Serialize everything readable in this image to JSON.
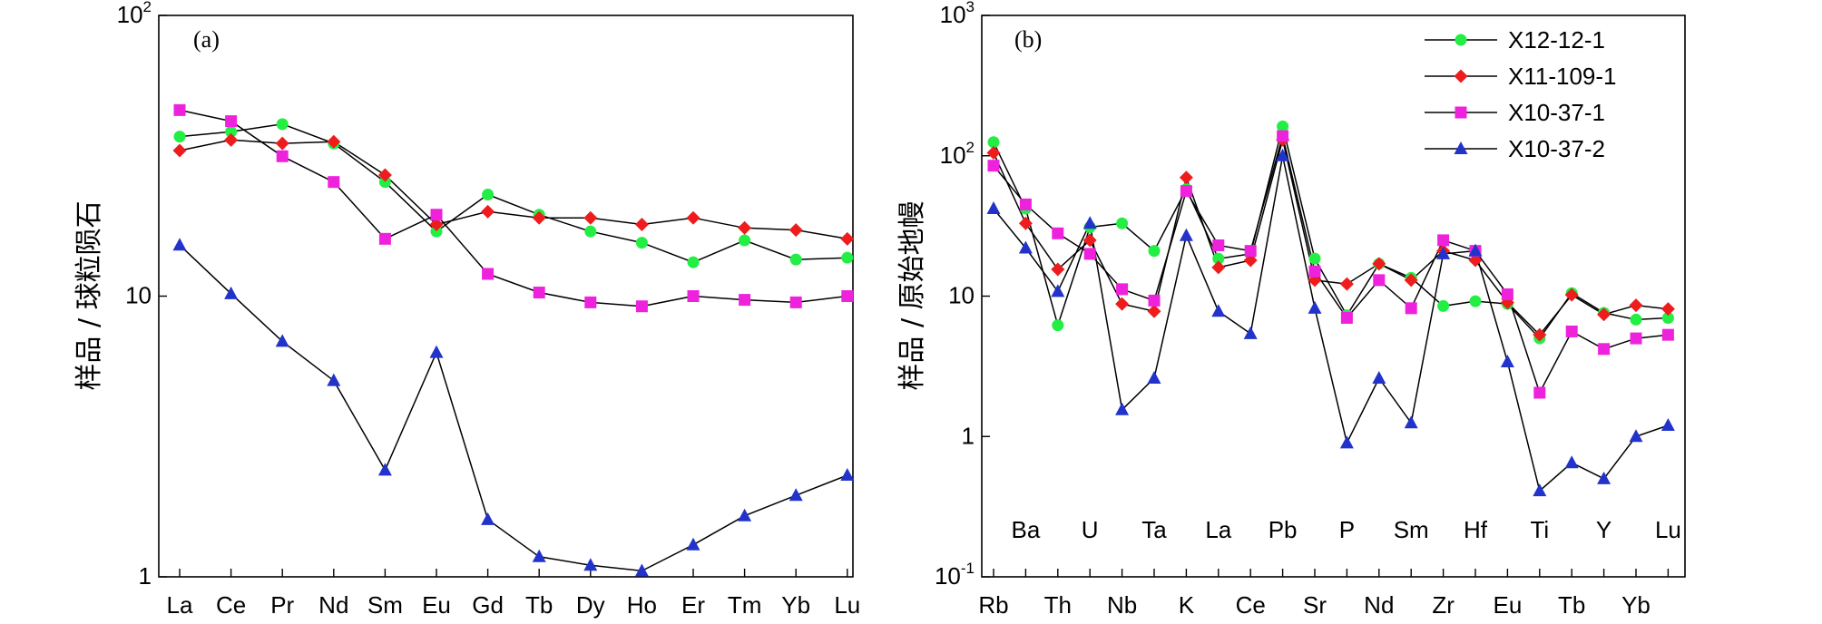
{
  "chart_data": [
    {
      "type": "line",
      "panel_label": "(a)",
      "ylabel": "样品 / 球粒陨石",
      "yscale": "log",
      "ylim": [
        1,
        100
      ],
      "y_ticks": [
        {
          "value": 1,
          "label": "1"
        },
        {
          "value": 10,
          "label": "10"
        },
        {
          "value": 100,
          "base": "10",
          "exp": "2"
        }
      ],
      "categories": [
        "La",
        "Ce",
        "Pr",
        "Nd",
        "Sm",
        "Eu",
        "Gd",
        "Tb",
        "Dy",
        "Ho",
        "Er",
        "Tm",
        "Yb",
        "Lu"
      ],
      "series": [
        {
          "name": "X12-12-1",
          "values": [
            37,
            38.5,
            41,
            35,
            25.5,
            17,
            23,
            19.5,
            17,
            15.5,
            13.2,
            15.8,
            13.5,
            13.7
          ]
        },
        {
          "name": "X11-109-1",
          "values": [
            33,
            36,
            35,
            35.5,
            27,
            18,
            20,
            19,
            19,
            18,
            19,
            17.5,
            17.2,
            16
          ]
        },
        {
          "name": "X10-37-1",
          "values": [
            46,
            42,
            31.5,
            25.5,
            16,
            19.5,
            12,
            10.3,
            9.5,
            9.2,
            10,
            9.7,
            9.5,
            10
          ]
        },
        {
          "name": "X10-37-2",
          "values": [
            15.2,
            10.2,
            6.9,
            5,
            2.4,
            6.3,
            1.6,
            1.18,
            1.1,
            1.05,
            1.3,
            1.65,
            1.95,
            2.3
          ]
        }
      ]
    },
    {
      "type": "line",
      "panel_label": "(b)",
      "ylabel": "样品 / 原始地幔",
      "yscale": "log",
      "ylim": [
        0.1,
        1000
      ],
      "y_ticks": [
        {
          "value": 0.1,
          "base": "10",
          "exp": "-1"
        },
        {
          "value": 1,
          "label": "1"
        },
        {
          "value": 10,
          "label": "10"
        },
        {
          "value": 100,
          "base": "10",
          "exp": "2"
        },
        {
          "value": 1000,
          "base": "10",
          "exp": "3"
        }
      ],
      "categories": [
        "Rb",
        "Ba",
        "Th",
        "U",
        "Nb",
        "Ta",
        "K",
        "La",
        "Ce",
        "Pb",
        "Sr",
        "P",
        "Nd",
        "Sm",
        "Zr",
        "Hf",
        "Eu",
        "Ti",
        "Tb",
        "Y",
        "Yb",
        "Lu"
      ],
      "bottom_labels": [
        "Rb",
        "Th",
        "Nb",
        "K",
        "Ce",
        "Sr",
        "Nd",
        "Zr",
        "Eu",
        "Tb",
        "Yb"
      ],
      "inner_labels": [
        "Ba",
        "U",
        "Ta",
        "La",
        "Pb",
        "P",
        "Sm",
        "Hf",
        "Ti",
        "Y",
        "Lu"
      ],
      "series": [
        {
          "name": "X12-12-1",
          "values": [
            125,
            42,
            6.2,
            31,
            33,
            21,
            58,
            18.5,
            20,
            162,
            18.5,
            7.3,
            17,
            13.5,
            8.5,
            9.2,
            8.8,
            5,
            10.5,
            7.6,
            6.8,
            7
          ]
        },
        {
          "name": "X11-109-1",
          "values": [
            105,
            33,
            15.5,
            25,
            8.8,
            7.8,
            70,
            16,
            18,
            130,
            13,
            12.2,
            17,
            13,
            21,
            18,
            9,
            5.3,
            10.2,
            7.4,
            8.6,
            8.1
          ]
        },
        {
          "name": "X10-37-1",
          "values": [
            85,
            45,
            28,
            20,
            11.2,
            9.3,
            56,
            23,
            21,
            138,
            15,
            7,
            13,
            8.2,
            25,
            21,
            10.3,
            2.05,
            5.6,
            4.2,
            5,
            5.3
          ]
        },
        {
          "name": "X10-37-2",
          "values": [
            42,
            22,
            10.8,
            33,
            1.55,
            2.6,
            27,
            7.8,
            5.4,
            100,
            8.2,
            0.9,
            2.6,
            1.25,
            20,
            21,
            3.4,
            0.41,
            0.65,
            0.5,
            1.0,
            1.2
          ]
        }
      ],
      "legend_position": "top-right"
    }
  ],
  "series_styles": [
    {
      "name": "X12-12-1",
      "color": "#22ee44",
      "marker": "circle"
    },
    {
      "name": "X11-109-1",
      "color": "#ee1c1c",
      "marker": "diamond"
    },
    {
      "name": "X10-37-1",
      "color": "#ee22dd",
      "marker": "square"
    },
    {
      "name": "X10-37-2",
      "color": "#2233cc",
      "marker": "triangle"
    }
  ]
}
